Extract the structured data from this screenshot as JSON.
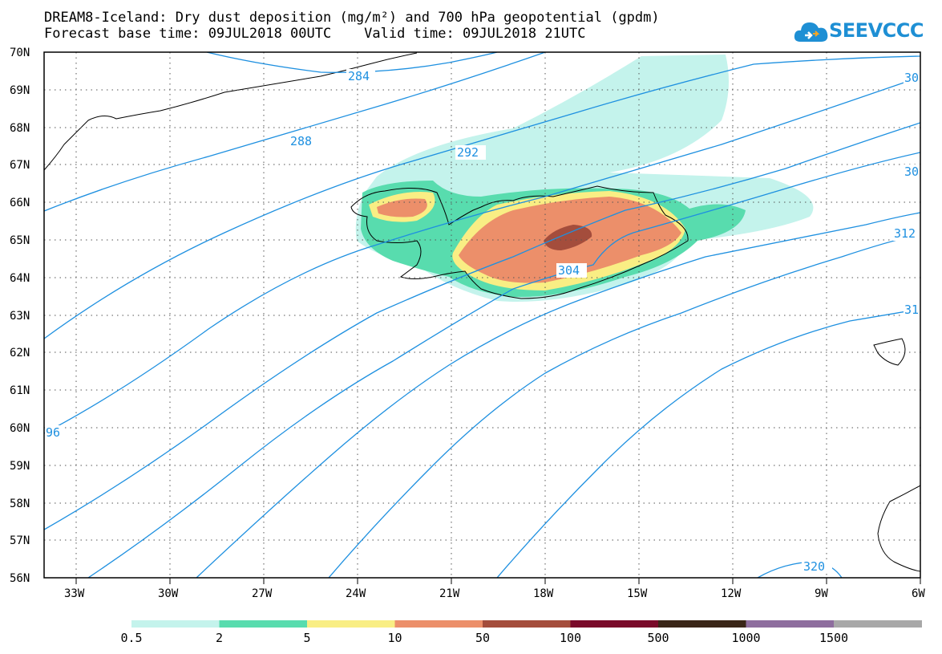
{
  "title": {
    "line1": "DREAM8-Iceland: Dry dust deposition (mg/m²) and 700 hPa geopotential (gpdm)",
    "line2": "Forecast base time: 09JUL2018 00UTC    Valid time: 09JUL2018 21UTC"
  },
  "logo": {
    "text": "SEEVCCC",
    "icon": "cloud-icon"
  },
  "axes": {
    "lat_labels": [
      "70N",
      "69N",
      "68N",
      "67N",
      "66N",
      "65N",
      "64N",
      "63N",
      "62N",
      "61N",
      "60N",
      "59N",
      "58N",
      "57N",
      "56N"
    ],
    "lon_labels": [
      "33W",
      "30W",
      "27W",
      "24W",
      "21W",
      "18W",
      "15W",
      "12W",
      "9W",
      "6W"
    ]
  },
  "map_extent": {
    "lon_min": -34,
    "lon_max": -6,
    "lat_min": 56,
    "lat_max": 70
  },
  "contour_labels": [
    "284",
    "288",
    "292",
    "304",
    "312",
    "320",
    "30",
    "30",
    "31",
    "96"
  ],
  "legend": {
    "labels": [
      "0.5",
      "2",
      "5",
      "10",
      "50",
      "100",
      "500",
      "1000",
      "1500"
    ],
    "colors": [
      "#c4f3ec",
      "#58dcae",
      "#f9ee84",
      "#ec8f6a",
      "#a44d3c",
      "#7a0a2a",
      "#3a2618",
      "#8e6e9e",
      "#a8a8a8"
    ]
  },
  "colors": {
    "contour": "#1e90e0",
    "logo": "#1e8fd4"
  }
}
